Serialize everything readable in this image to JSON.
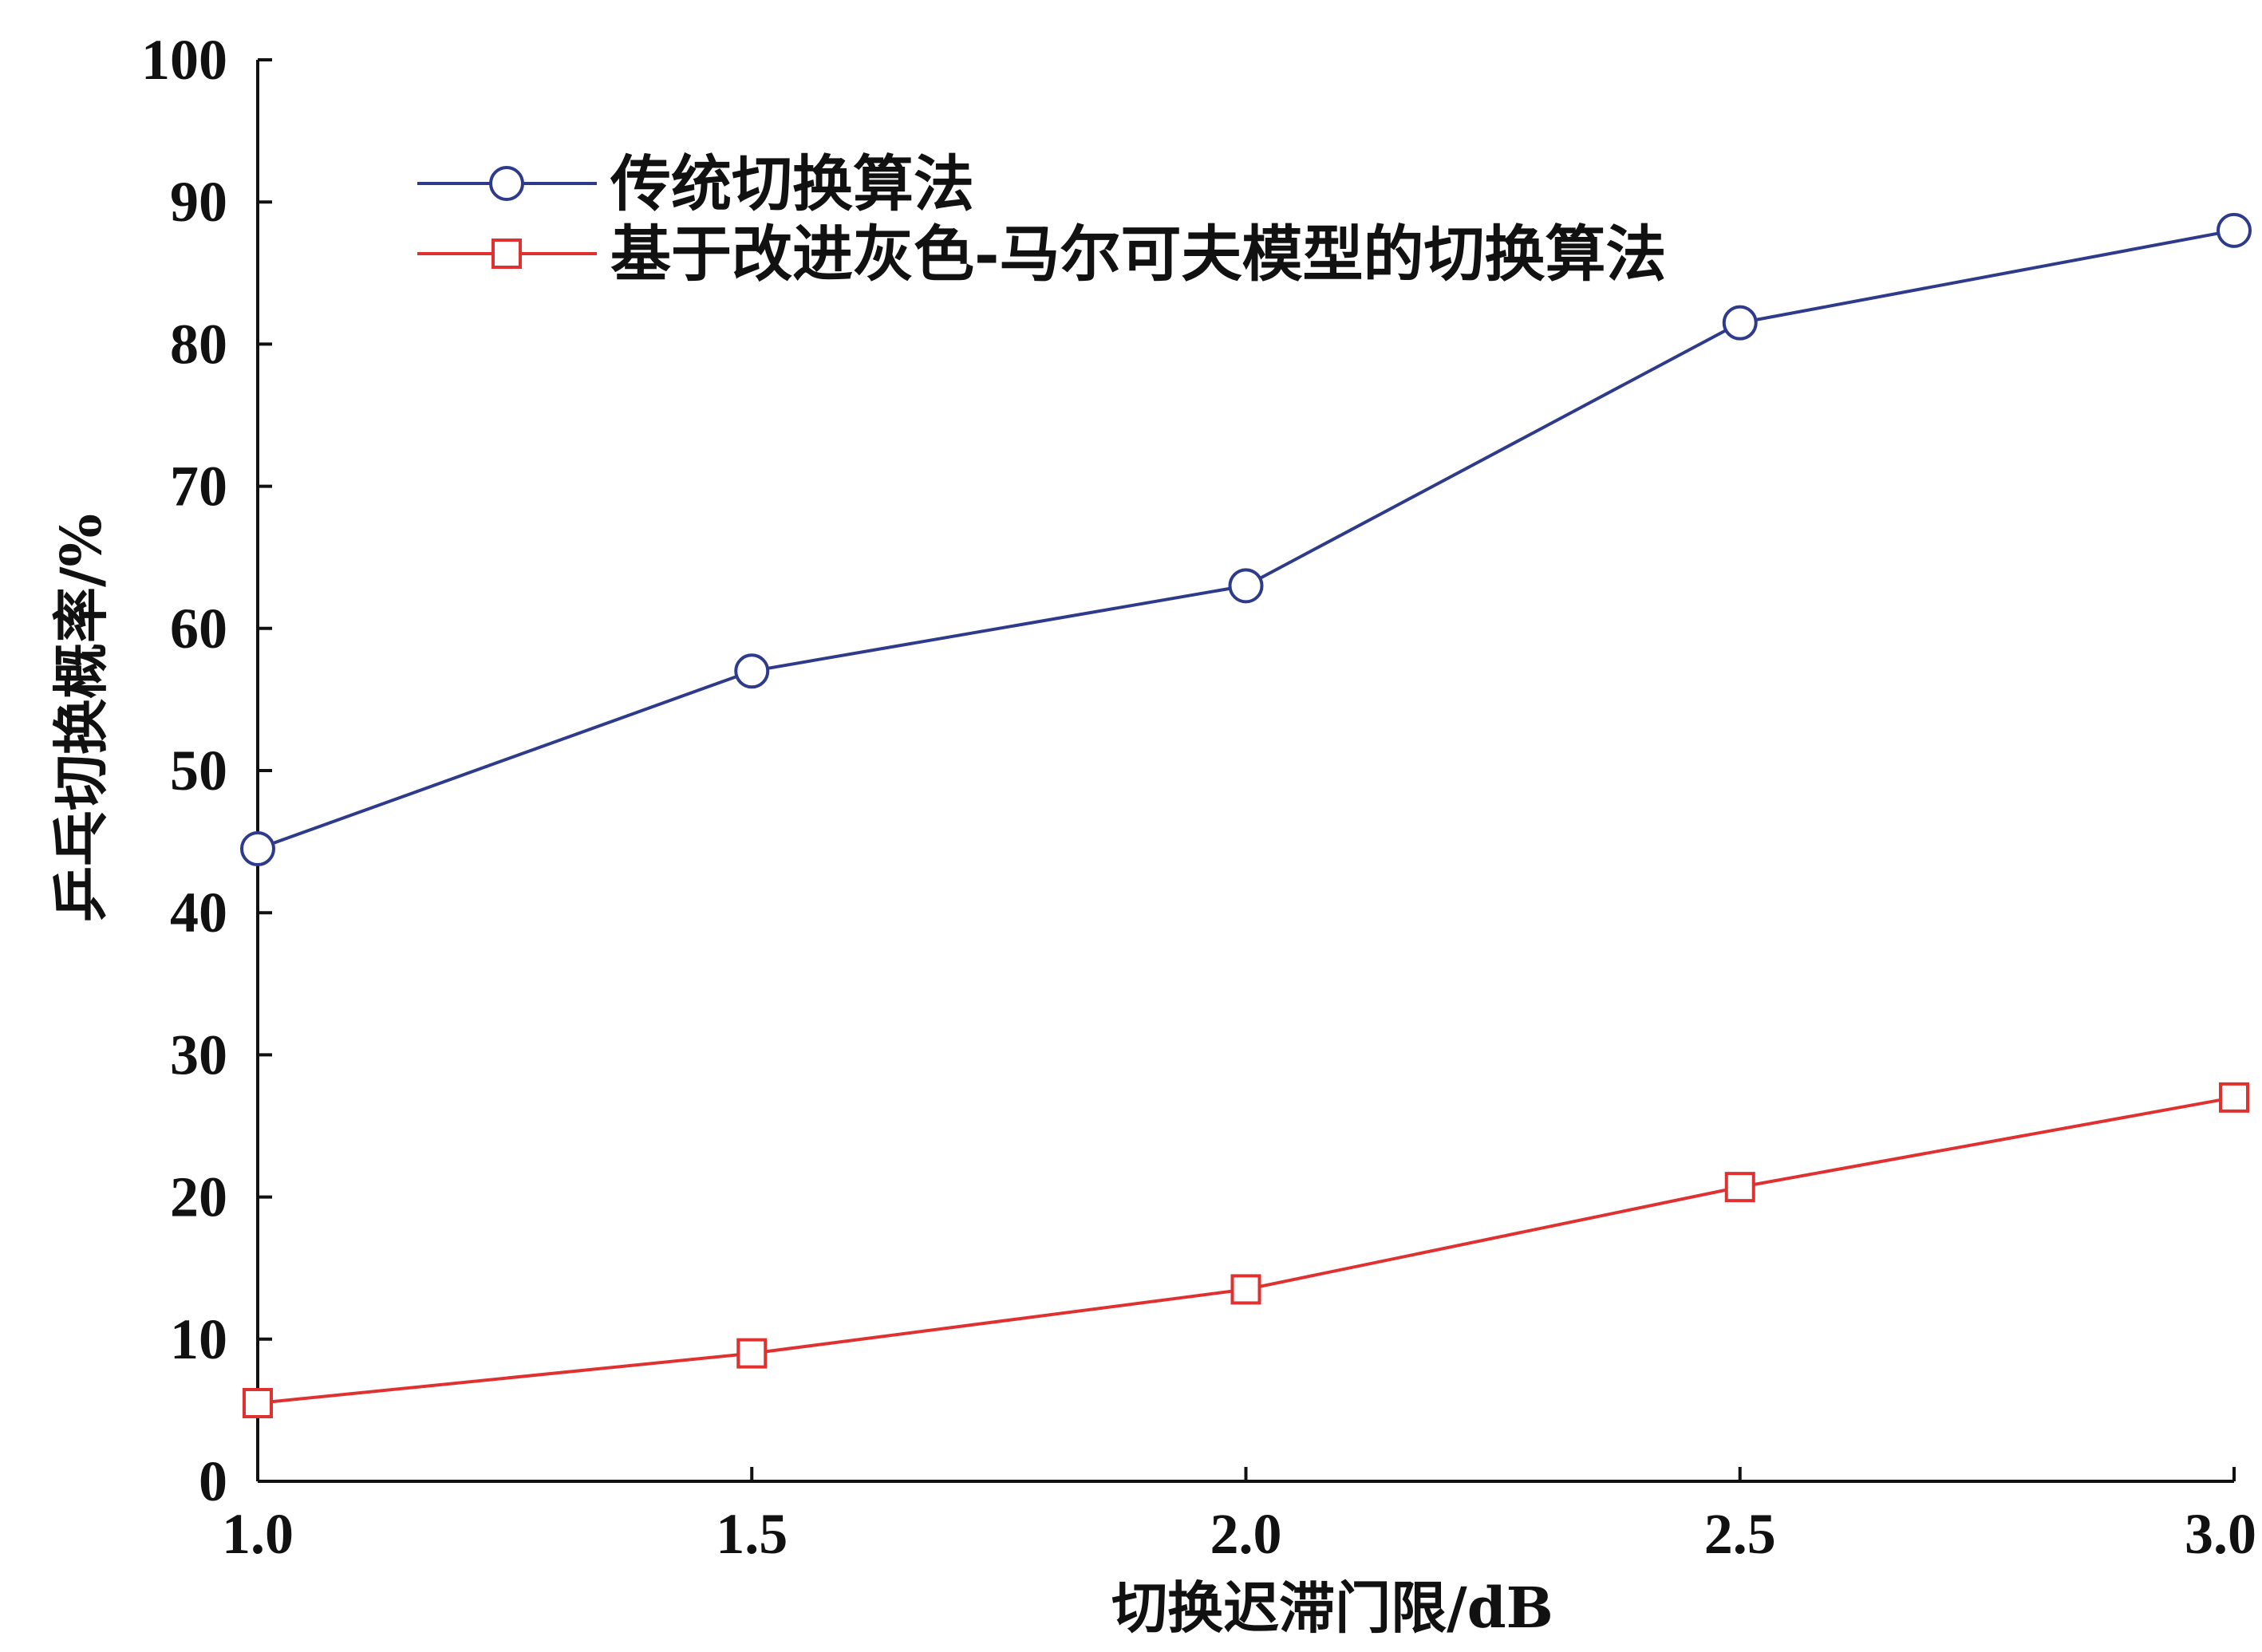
{
  "chart_data": {
    "type": "line",
    "xlabel": "切换迟滞门限/dB",
    "ylabel": "乒乓切换概率/%",
    "xlim": [
      1.0,
      3.0
    ],
    "ylim": [
      0,
      100
    ],
    "x_ticks": [
      "1.0",
      "1.5",
      "2.0",
      "2.5",
      "3.0"
    ],
    "y_ticks": [
      "0",
      "10",
      "20",
      "30",
      "40",
      "50",
      "60",
      "70",
      "80",
      "90",
      "100"
    ],
    "x": [
      1.0,
      1.5,
      2.0,
      2.5,
      3.0
    ],
    "grid": false,
    "legend_position": "top-left",
    "series": [
      {
        "name": "传统切换算法",
        "values": [
          44.5,
          57.0,
          63.0,
          81.5,
          88.0
        ],
        "color": "#2e3b8c",
        "marker": "circle"
      },
      {
        "name": "基于改进灰色-马尔可夫模型的切换算法",
        "values": [
          5.5,
          9.0,
          13.5,
          20.7,
          27.0
        ],
        "color": "#e03131",
        "marker": "square"
      }
    ]
  }
}
